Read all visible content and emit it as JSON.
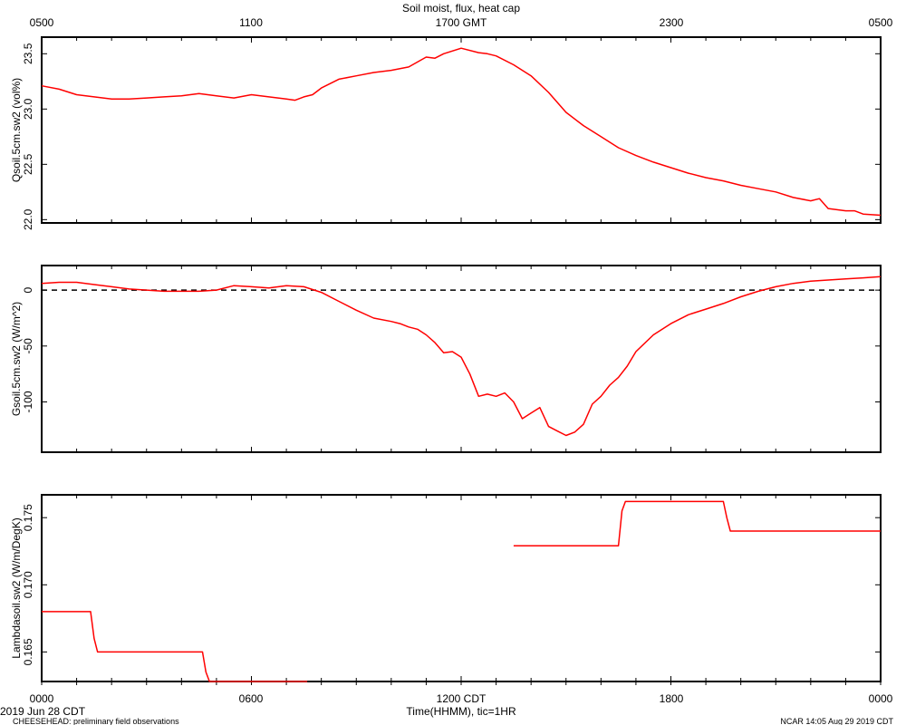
{
  "title": "Soil moist, flux, heat cap",
  "top_axis": {
    "labels": [
      "0500",
      "1100",
      "1700 GMT",
      "2300",
      "0500"
    ]
  },
  "bottom_axis": {
    "labels": [
      "0000",
      "0600",
      "1200 CDT",
      "1800",
      "0000"
    ],
    "xlabel": "Time(HHMM), tic=1HR"
  },
  "footer": {
    "date": "2019 Jun 28 CDT",
    "project": "CHEESEHEAD: preliminary field observations",
    "credit": "NCAR 14:05 Aug 29 2019 CDT"
  },
  "chart_data": [
    {
      "type": "line",
      "ylabel": "Qsoil.5cm.sw2 (vol%)",
      "ylim": [
        21.97,
        23.65
      ],
      "yticks": [
        22.0,
        22.5,
        23.0,
        23.5
      ],
      "ytick_labels": [
        "22.0",
        "22.5",
        "23.0",
        "23.5"
      ],
      "series": [
        {
          "color": "#ff0000",
          "x": [
            0,
            0.5,
            1,
            1.5,
            2,
            2.5,
            3,
            3.5,
            4,
            4.5,
            5,
            5.5,
            6,
            6.5,
            7,
            7.25,
            7.5,
            7.75,
            8,
            8.5,
            9,
            9.5,
            10,
            10.5,
            11,
            11.25,
            11.5,
            12,
            12.5,
            12.75,
            13,
            13.5,
            14,
            14.5,
            15,
            15.5,
            16,
            16.5,
            17,
            17.5,
            18,
            18.5,
            19,
            19.5,
            20,
            20.5,
            21,
            21.5,
            22,
            22.25,
            22.5,
            23,
            23.25,
            23.5,
            24
          ],
          "y": [
            23.21,
            23.18,
            23.13,
            23.11,
            23.09,
            23.09,
            23.1,
            23.11,
            23.12,
            23.14,
            23.12,
            23.1,
            23.13,
            23.11,
            23.09,
            23.08,
            23.11,
            23.13,
            23.19,
            23.27,
            23.3,
            23.33,
            23.35,
            23.38,
            23.47,
            23.46,
            23.5,
            23.55,
            23.51,
            23.5,
            23.48,
            23.4,
            23.3,
            23.15,
            22.97,
            22.85,
            22.75,
            22.65,
            22.58,
            22.52,
            22.47,
            22.42,
            22.38,
            22.35,
            22.31,
            22.28,
            22.25,
            22.2,
            22.17,
            22.19,
            22.1,
            22.08,
            22.08,
            22.05,
            22.04
          ]
        }
      ]
    },
    {
      "type": "line",
      "ylabel": "Gsoil.5cm.sw2 (W/m^2)",
      "ylim": [
        -145,
        22
      ],
      "yticks": [
        0,
        -50,
        -100
      ],
      "ytick_labels": [
        "0",
        "-50",
        "-100"
      ],
      "zero_line": true,
      "series": [
        {
          "color": "#ff0000",
          "x": [
            0,
            0.5,
            1,
            1.5,
            2,
            2.5,
            3,
            3.5,
            4,
            4.5,
            5,
            5.5,
            6,
            6.5,
            7,
            7.5,
            8,
            8.5,
            9,
            9.5,
            10,
            10.25,
            10.5,
            10.75,
            11,
            11.25,
            11.5,
            11.75,
            12,
            12.25,
            12.5,
            12.75,
            13,
            13.25,
            13.5,
            13.75,
            14,
            14.25,
            14.5,
            14.75,
            15,
            15.25,
            15.5,
            15.75,
            16,
            16.25,
            16.5,
            16.75,
            17,
            17.5,
            18,
            18.5,
            19,
            19.5,
            20,
            20.5,
            21,
            21.5,
            22,
            22.5,
            23,
            23.5,
            24
          ],
          "y": [
            6,
            7,
            7,
            5,
            3,
            1,
            0,
            -1,
            -1,
            -1,
            0,
            4,
            3,
            2,
            4,
            3,
            -2,
            -10,
            -18,
            -25,
            -28,
            -30,
            -33,
            -35,
            -40,
            -47,
            -56,
            -55,
            -60,
            -75,
            -95,
            -93,
            -95,
            -92,
            -100,
            -115,
            -110,
            -105,
            -122,
            -126,
            -130,
            -127,
            -120,
            -102,
            -95,
            -85,
            -78,
            -68,
            -55,
            -40,
            -30,
            -22,
            -17,
            -12,
            -6,
            -1,
            3,
            6,
            8,
            9,
            10,
            11,
            12
          ]
        }
      ]
    },
    {
      "type": "line",
      "ylabel": "Lambdasoil.sw2 (W/m/DegK)",
      "ylim": [
        0.1628,
        0.1767
      ],
      "yticks": [
        0.165,
        0.17,
        0.175
      ],
      "ytick_labels": [
        "0.165",
        "0.170",
        "0.175"
      ],
      "series": [
        {
          "color": "#ff0000",
          "segments": [
            {
              "x": [
                0,
                1.4,
                1.5,
                1.6,
                4.6,
                4.7,
                4.8,
                7.6
              ],
              "y": [
                0.168,
                0.168,
                0.166,
                0.165,
                0.165,
                0.1635,
                0.1628,
                0.1628
              ]
            },
            {
              "x": [
                13.5,
                16.5,
                16.6,
                16.7,
                19.5,
                19.6,
                19.7,
                24
              ],
              "y": [
                0.1729,
                0.1729,
                0.1755,
                0.1762,
                0.1762,
                0.175,
                0.174,
                0.174
              ]
            }
          ]
        }
      ]
    }
  ]
}
